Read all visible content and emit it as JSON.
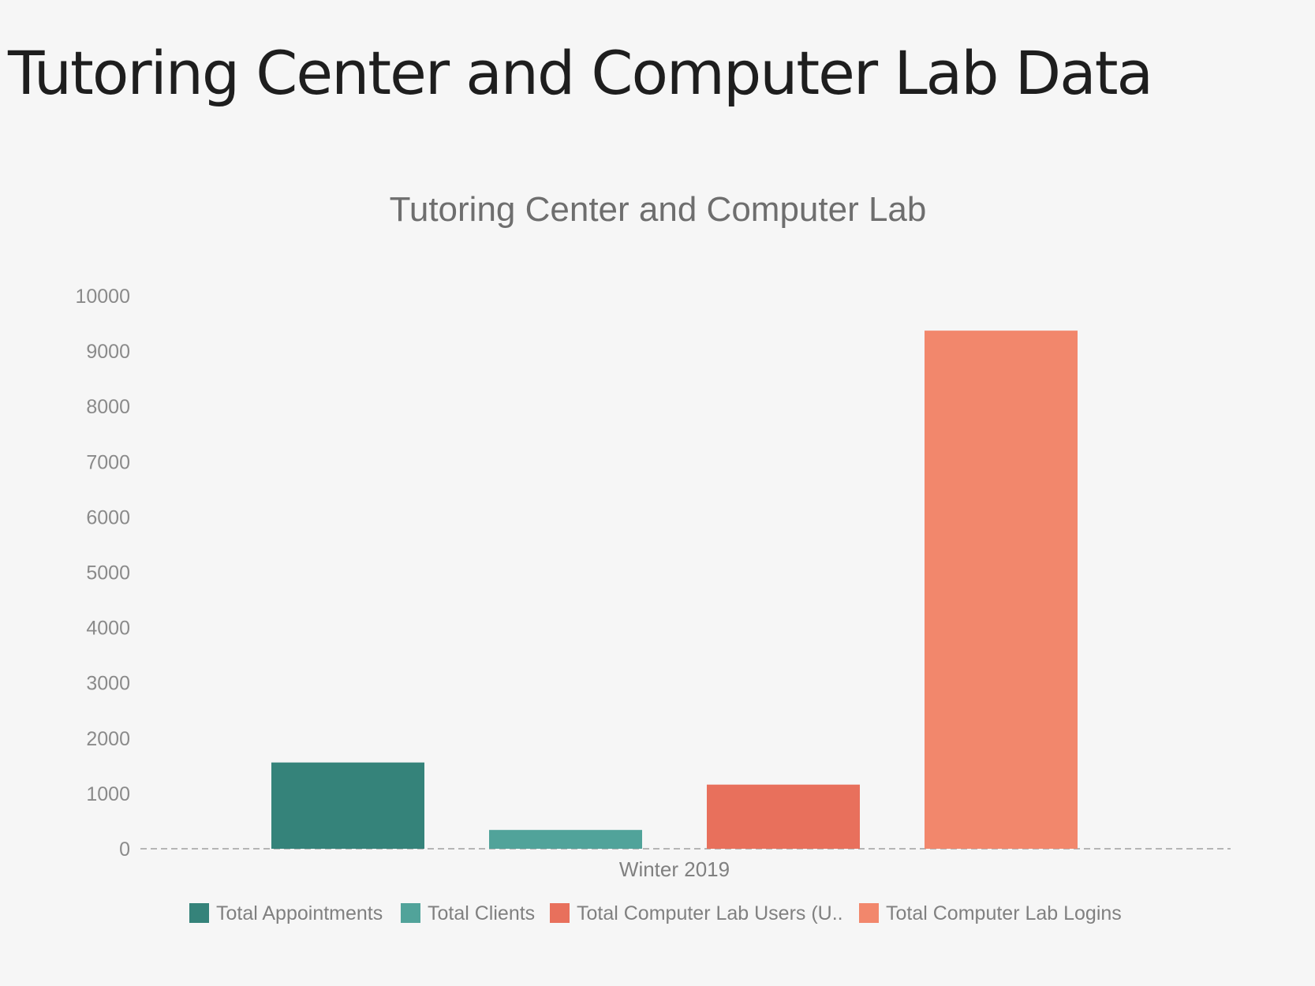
{
  "slide": {
    "title": "Tutoring Center and Computer Lab Data"
  },
  "chart_data": {
    "type": "bar",
    "title": "Tutoring Center and Computer Lab",
    "xlabel": "",
    "ylabel": "",
    "categories": [
      "Winter 2019"
    ],
    "series": [
      {
        "name": "Total Appointments",
        "values": [
          1560
        ],
        "color": "#35837a"
      },
      {
        "name": "Total Clients",
        "values": [
          340
        ],
        "color": "#51a39a"
      },
      {
        "name": "Total Computer Lab Users (U..",
        "values": [
          1160
        ],
        "color": "#e8705c"
      },
      {
        "name": "Total Computer Lab Logins",
        "values": [
          9370
        ],
        "color": "#f2876c"
      }
    ],
    "ylim": [
      0,
      10000
    ],
    "yticks": [
      0,
      1000,
      2000,
      3000,
      4000,
      5000,
      6000,
      7000,
      8000,
      9000,
      10000
    ],
    "grid": false,
    "legend": "bottom"
  }
}
